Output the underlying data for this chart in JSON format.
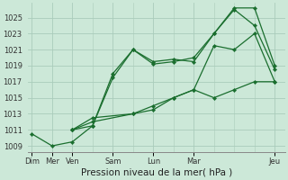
{
  "bg_color": "#cce8d8",
  "grid_color": "#aaccbb",
  "line_color": "#1a6e2e",
  "xlabel": "Pression niveau de la mer( hPa )",
  "xlabel_fontsize": 7.5,
  "ytick_labels": [
    "1009",
    "1011",
    "1013",
    "1015",
    "1017",
    "1019",
    "1021",
    "1023",
    "1025"
  ],
  "ytick_vals": [
    1009,
    1011,
    1013,
    1015,
    1017,
    1019,
    1021,
    1023,
    1025
  ],
  "xtick_positions": [
    0,
    1,
    2,
    4,
    6,
    8,
    12
  ],
  "xtick_labels": [
    "Dim",
    "Mer",
    "Ven",
    "Sam",
    "Lun",
    "Mar",
    "Jeu"
  ],
  "xlim": [
    -0.2,
    12.5
  ],
  "ylim": [
    1008.2,
    1026.8
  ],
  "series": [
    {
      "x": [
        0,
        1,
        2,
        3,
        4,
        5,
        6,
        7,
        8,
        9,
        10,
        11,
        12
      ],
      "y": [
        1010.5,
        1009,
        1009.5,
        1011.5,
        1017.5,
        1021,
        1019.5,
        1019.8,
        1019.5,
        1023,
        1026.2,
        1026.2,
        1019
      ]
    },
    {
      "x": [
        2,
        3,
        4,
        5,
        6,
        7,
        8,
        9,
        10,
        11,
        12
      ],
      "y": [
        1011,
        1011.5,
        1018,
        1021,
        1019.2,
        1019.5,
        1020,
        1023,
        1026,
        1024,
        1018.5
      ]
    },
    {
      "x": [
        2,
        3,
        5,
        6,
        7,
        8,
        9,
        10,
        11,
        12
      ],
      "y": [
        1011,
        1012,
        1013,
        1013.5,
        1015,
        1016,
        1021.5,
        1021,
        1023,
        1017
      ]
    },
    {
      "x": [
        2,
        3,
        5,
        6,
        7,
        8,
        9,
        10,
        11,
        12
      ],
      "y": [
        1011,
        1012.5,
        1013,
        1014,
        1015,
        1016,
        1015,
        1016,
        1017,
        1017
      ]
    }
  ]
}
